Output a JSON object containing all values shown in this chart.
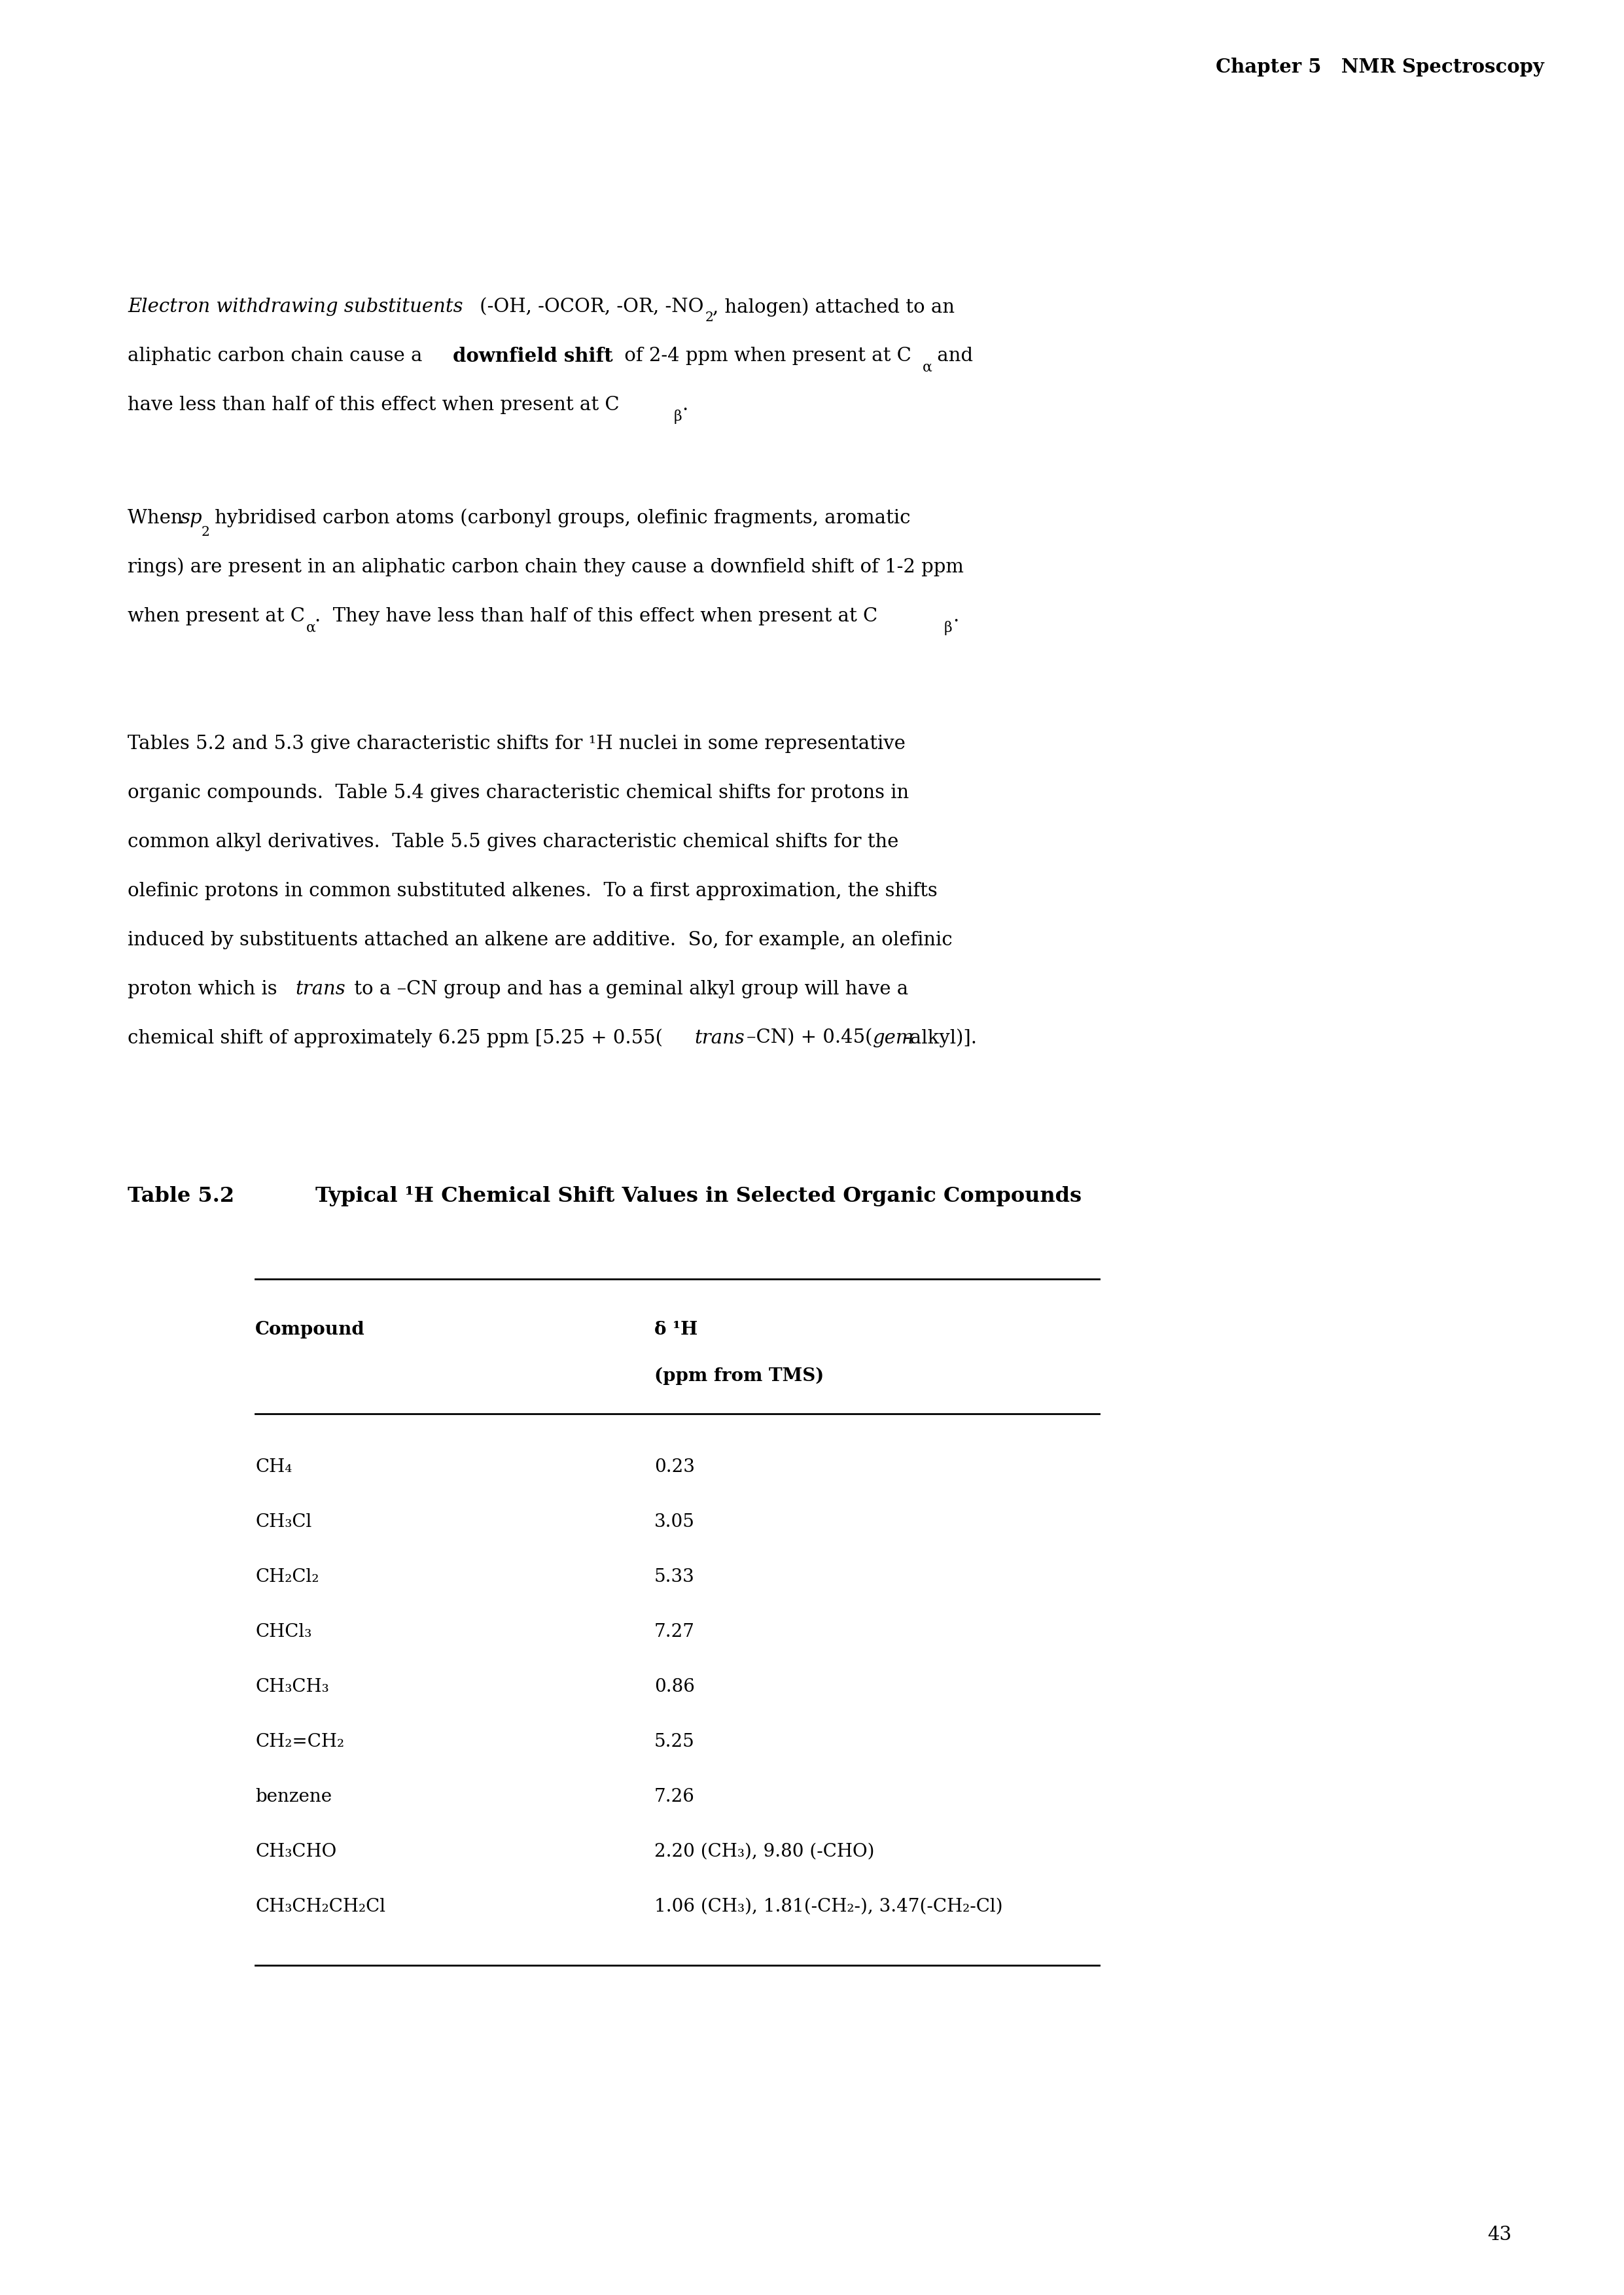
{
  "page_number": "43",
  "header_text": "Chapter 5   NMR Spectroscopy",
  "background_color": "#ffffff",
  "text_color": "#000000",
  "table_title_bold": "Table 5.2",
  "table_title_rest": "Typical ¹H Chemical Shift Values in Selected Organic Compounds",
  "table_col1_header": "Compound",
  "table_col2_header_line1": "δ ¹H",
  "table_col2_header_line2": "(ppm from TMS)",
  "table_rows": [
    {
      "compound": "CH₄",
      "shift": "0.23"
    },
    {
      "compound": "CH₃Cl",
      "shift": "3.05"
    },
    {
      "compound": "CH₂Cl₂",
      "shift": "5.33"
    },
    {
      "compound": "CHCl₃",
      "shift": "7.27"
    },
    {
      "compound": "CH₃CH₃",
      "shift": "0.86"
    },
    {
      "compound": "CH₂=CH₂",
      "shift": "5.25"
    },
    {
      "compound": "benzene",
      "shift": "7.26"
    },
    {
      "compound": "CH₃CHO",
      "shift": "2.20 (CH₃), 9.80 (-CHO)"
    },
    {
      "compound": "CH₃CH₂CH₂Cl",
      "shift": "1.06 (CH₃), 1.81(-CH₂-), 3.47(-CH₂-Cl)"
    }
  ]
}
